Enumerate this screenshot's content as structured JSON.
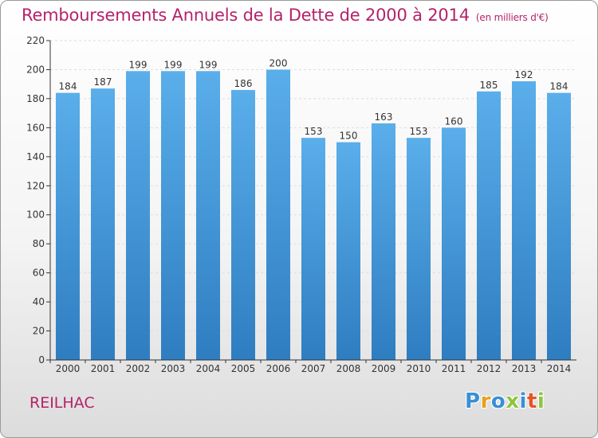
{
  "header": {
    "title": "Remboursements Annuels de la Dette de 2000 à 2014",
    "unit": "(en milliers d'€)"
  },
  "footer": {
    "commune": "REILHAC",
    "logo": "Proxiti",
    "logo_colors": [
      "#3a8fd6",
      "#e5a21c",
      "#3a8fd6",
      "#8cc63e",
      "#3a8fd6",
      "#e5542b",
      "#8cc63e"
    ]
  },
  "colors": {
    "bar_light": "#5aaeea",
    "bar_dark": "#2e7dc1",
    "title": "#b5226a",
    "grid": "#dddddd",
    "axis": "#333333"
  },
  "chart_data": {
    "type": "bar",
    "categories": [
      "2000",
      "2001",
      "2002",
      "2003",
      "2004",
      "2005",
      "2006",
      "2007",
      "2008",
      "2009",
      "2010",
      "2011",
      "2012",
      "2013",
      "2014"
    ],
    "values": [
      184,
      187,
      199,
      199,
      199,
      186,
      200,
      153,
      150,
      163,
      153,
      160,
      185,
      192,
      184
    ],
    "data_labels": [
      "184",
      "187",
      "199",
      "199",
      "199",
      "186",
      "200",
      "153",
      "150",
      "163",
      "153",
      "160",
      "185",
      "192",
      "184"
    ],
    "yticks": [
      "0",
      "20",
      "40",
      "60",
      "80",
      "100",
      "120",
      "140",
      "160",
      "180",
      "200",
      "220"
    ],
    "ylim": [
      0,
      220
    ],
    "grid": true,
    "title": "Remboursements Annuels de la Dette de 2000 à 2014",
    "xlabel": "",
    "ylabel": ""
  }
}
